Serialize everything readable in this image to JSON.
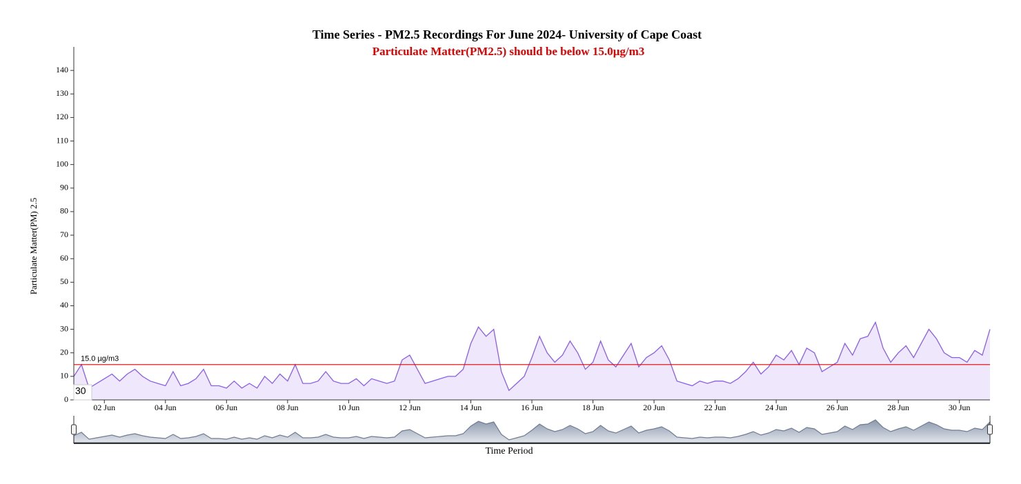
{
  "chart_data": {
    "type": "area",
    "title": "Time Series - PM2.5 Recordings For June 2024- University of Cape Coast",
    "subtitle": "Particulate Matter(PM2.5) should be below 15.0µg/m3",
    "ylabel": "Particulate Matter(PM) 2.5",
    "xlabel": "Time Period",
    "x": [
      1,
      1.25,
      1.5,
      1.75,
      2,
      2.25,
      2.5,
      2.75,
      3,
      3.25,
      3.5,
      3.75,
      4,
      4.25,
      4.5,
      4.75,
      5,
      5.25,
      5.5,
      5.75,
      6,
      6.25,
      6.5,
      6.75,
      7,
      7.25,
      7.5,
      7.75,
      8,
      8.25,
      8.5,
      8.75,
      9,
      9.25,
      9.5,
      9.75,
      10,
      10.25,
      10.5,
      10.75,
      11,
      11.25,
      11.5,
      11.75,
      12,
      12.25,
      12.5,
      12.75,
      13,
      13.25,
      13.5,
      13.75,
      14,
      14.25,
      14.5,
      14.75,
      15,
      15.25,
      15.5,
      15.75,
      16,
      16.25,
      16.5,
      16.75,
      17,
      17.25,
      17.5,
      17.75,
      18,
      18.25,
      18.5,
      18.75,
      19,
      19.25,
      19.5,
      19.75,
      20,
      20.25,
      20.5,
      20.75,
      21,
      21.25,
      21.5,
      21.75,
      22,
      22.25,
      22.5,
      22.75,
      23,
      23.25,
      23.5,
      23.75,
      24,
      24.25,
      24.5,
      24.75,
      25,
      25.25,
      25.5,
      25.75,
      26,
      26.25,
      26.5,
      26.75,
      27,
      27.25,
      27.5,
      27.75,
      28,
      28.25,
      28.5,
      28.75,
      29,
      29.25,
      29.5,
      29.75,
      30,
      30.25,
      30.5,
      30.75,
      31
    ],
    "values": [
      10,
      15,
      5,
      7,
      9,
      11,
      8,
      11,
      13,
      10,
      8,
      7,
      6,
      12,
      6,
      7,
      9,
      13,
      6,
      6,
      5,
      8,
      5,
      7,
      5,
      10,
      7,
      11,
      8,
      15,
      7,
      7,
      8,
      12,
      8,
      7,
      7,
      9,
      6,
      9,
      8,
      7,
      8,
      17,
      19,
      13,
      7,
      8,
      9,
      10,
      10,
      13,
      24,
      31,
      27,
      30,
      12,
      4,
      7,
      10,
      18,
      27,
      20,
      16,
      19,
      25,
      20,
      13,
      16,
      25,
      17,
      14,
      19,
      24,
      14,
      18,
      20,
      23,
      17,
      8,
      7,
      6,
      8,
      7,
      8,
      8,
      7,
      9,
      12,
      16,
      11,
      14,
      19,
      17,
      21,
      15,
      22,
      20,
      12,
      14,
      16,
      24,
      19,
      26,
      27,
      33,
      22,
      16,
      20,
      23,
      18,
      24,
      30,
      26,
      20,
      18,
      18,
      16,
      21,
      19,
      30
    ],
    "color": "#8a5cf0",
    "fill_color": "#efe8fd",
    "xlim": [
      1,
      31
    ],
    "ylim": [
      0,
      150
    ],
    "yticks": [
      0,
      10,
      20,
      30,
      40,
      50,
      60,
      70,
      80,
      90,
      100,
      110,
      120,
      130,
      140
    ],
    "xticks": [
      {
        "value": 2,
        "label": "02 Jun"
      },
      {
        "value": 4,
        "label": "04 Jun"
      },
      {
        "value": 6,
        "label": "06 Jun"
      },
      {
        "value": 8,
        "label": "08 Jun"
      },
      {
        "value": 10,
        "label": "10 Jun"
      },
      {
        "value": 12,
        "label": "12 Jun"
      },
      {
        "value": 14,
        "label": "14 Jun"
      },
      {
        "value": 16,
        "label": "16 Jun"
      },
      {
        "value": 18,
        "label": "18 Jun"
      },
      {
        "value": 20,
        "label": "20 Jun"
      },
      {
        "value": 22,
        "label": "22 Jun"
      },
      {
        "value": 24,
        "label": "24 Jun"
      },
      {
        "value": 26,
        "label": "26 Jun"
      },
      {
        "value": 28,
        "label": "28 Jun"
      },
      {
        "value": 30,
        "label": "30 Jun"
      }
    ],
    "threshold": {
      "value": 15,
      "label": "15.0 µg/m3",
      "color": "#e00000"
    },
    "annotations": [
      "30"
    ]
  }
}
